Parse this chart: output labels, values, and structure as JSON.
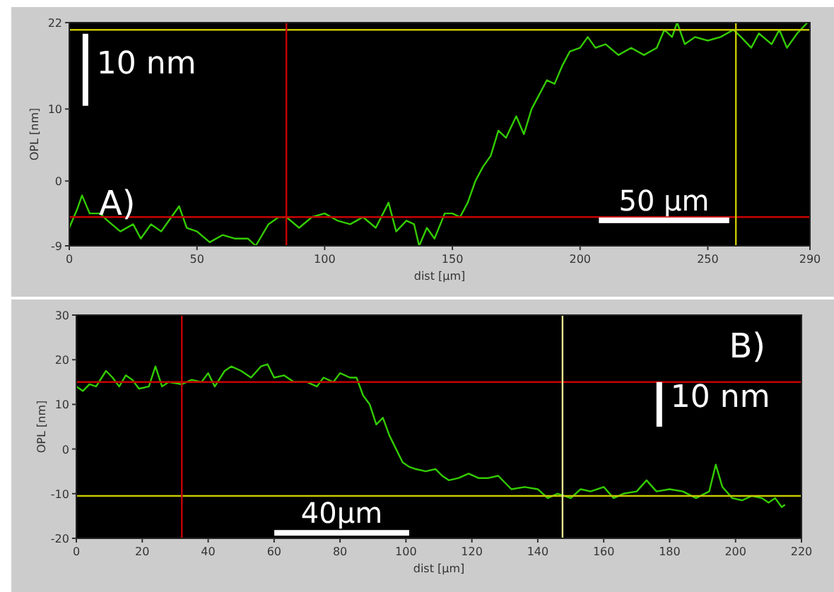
{
  "chart_data": [
    {
      "type": "line",
      "xlabel": "dist [µm]",
      "ylabel": "OPL [nm]",
      "xlim": [
        0,
        290
      ],
      "ylim": [
        -9,
        22
      ],
      "xticks": [
        0,
        50,
        100,
        150,
        200,
        250,
        290
      ],
      "yticks": [
        -9,
        0,
        10,
        22
      ],
      "marker": "none",
      "line_style": "solid",
      "annotations": [
        "A)",
        "10 nm",
        "50 µm"
      ],
      "ref_lines": [
        {
          "axis": "y",
          "value": 21,
          "color": "#c8c800"
        },
        {
          "axis": "y",
          "value": -5,
          "color": "#c80000"
        },
        {
          "axis": "x",
          "value": 85,
          "color": "#c80000"
        },
        {
          "axis": "x",
          "value": 261,
          "color": "#c8c800"
        }
      ],
      "series": [
        {
          "color": "#33cc00",
          "x": [
            0,
            3,
            5,
            8,
            12,
            15,
            20,
            25,
            28,
            32,
            36,
            40,
            43,
            46,
            50,
            55,
            60,
            65,
            70,
            73,
            78,
            82,
            85,
            90,
            95,
            100,
            105,
            110,
            115,
            120,
            125,
            128,
            132,
            135,
            137,
            140,
            143,
            147,
            150,
            153,
            156,
            159,
            162,
            165,
            168,
            171,
            175,
            178,
            181,
            184,
            187,
            190,
            193,
            196,
            200,
            203,
            206,
            210,
            215,
            220,
            225,
            230,
            233,
            236,
            238,
            241,
            245,
            250,
            255,
            260,
            263,
            267,
            270,
            275,
            278,
            281,
            285,
            289
          ],
          "values": [
            -6.5,
            -4,
            -2,
            -4.5,
            -4.5,
            -5.5,
            -7,
            -6,
            -8,
            -6,
            -7,
            -5,
            -3.5,
            -6.5,
            -7,
            -8.5,
            -7.5,
            -8,
            -8,
            -9,
            -6,
            -5,
            -5,
            -6.5,
            -5,
            -4.5,
            -5.5,
            -6,
            -5,
            -6.5,
            -3,
            -7,
            -5.5,
            -6,
            -9,
            -6.5,
            -8,
            -4.5,
            -4.5,
            -5,
            -3,
            0,
            2,
            3.5,
            7,
            6,
            9,
            6.5,
            10,
            12,
            14,
            13.5,
            16,
            18,
            18.5,
            20,
            18.5,
            19,
            17.5,
            18.5,
            17.5,
            18.5,
            21,
            20,
            22,
            19,
            20,
            19.5,
            20,
            21,
            20,
            18.5,
            20.5,
            19,
            21,
            18.5,
            20.5,
            22
          ]
        }
      ]
    },
    {
      "type": "line",
      "xlabel": "dist [µm]",
      "ylabel": "OPL [nm]",
      "xlim": [
        0,
        220
      ],
      "ylim": [
        -20,
        30
      ],
      "xticks": [
        0,
        20,
        40,
        60,
        80,
        100,
        120,
        140,
        160,
        180,
        200,
        220
      ],
      "yticks": [
        -20,
        -10,
        0,
        10,
        20,
        30
      ],
      "marker": "none",
      "line_style": "solid",
      "annotations": [
        "B)",
        "10 nm",
        "40µm"
      ],
      "ref_lines": [
        {
          "axis": "y",
          "value": 15,
          "color": "#c80000"
        },
        {
          "axis": "y",
          "value": -10.5,
          "color": "#c8c800"
        },
        {
          "axis": "x",
          "value": 32,
          "color": "#c80000"
        },
        {
          "axis": "x",
          "value": 147.5,
          "color": "#e8e890"
        }
      ],
      "series": [
        {
          "color": "#33cc00",
          "x": [
            0,
            2,
            4,
            6,
            9,
            11,
            13,
            15,
            17,
            19,
            22,
            24,
            26,
            28,
            32,
            35,
            38,
            40,
            42,
            45,
            47,
            50,
            53,
            56,
            58,
            60,
            63,
            66,
            70,
            73,
            75,
            78,
            80,
            83,
            85,
            87,
            89,
            91,
            93,
            95,
            97,
            99,
            101,
            103,
            106,
            109,
            111,
            113,
            116,
            119,
            122,
            125,
            128,
            130,
            132,
            136,
            140,
            143,
            146,
            148,
            150,
            153,
            156,
            160,
            163,
            166,
            170,
            173,
            176,
            180,
            184,
            188,
            192,
            194,
            196,
            199,
            202,
            205,
            208,
            210,
            212,
            214,
            215
          ],
          "values": [
            14,
            13,
            14.5,
            14,
            17.5,
            16,
            14,
            16.5,
            15.5,
            13.5,
            14,
            18.5,
            14,
            15,
            14.5,
            15.5,
            15,
            17,
            14,
            17.5,
            18.5,
            17.5,
            16,
            18.5,
            19,
            16,
            16.5,
            15,
            15,
            14,
            16,
            15,
            17,
            16,
            16,
            12,
            10,
            5.5,
            7,
            3,
            0,
            -3,
            -4,
            -4.5,
            -5,
            -4.5,
            -6,
            -7,
            -6.5,
            -5.5,
            -6.5,
            -6.5,
            -6,
            -7.5,
            -9,
            -8.5,
            -9,
            -11,
            -10,
            -10.5,
            -11,
            -9,
            -9.5,
            -8.5,
            -11,
            -10,
            -9.5,
            -7,
            -9.5,
            -9,
            -9.5,
            -11,
            -9.5,
            -3.5,
            -8.5,
            -11,
            -11.5,
            -10.5,
            -11,
            -12,
            -11,
            -13,
            -12.5
          ]
        }
      ]
    }
  ]
}
